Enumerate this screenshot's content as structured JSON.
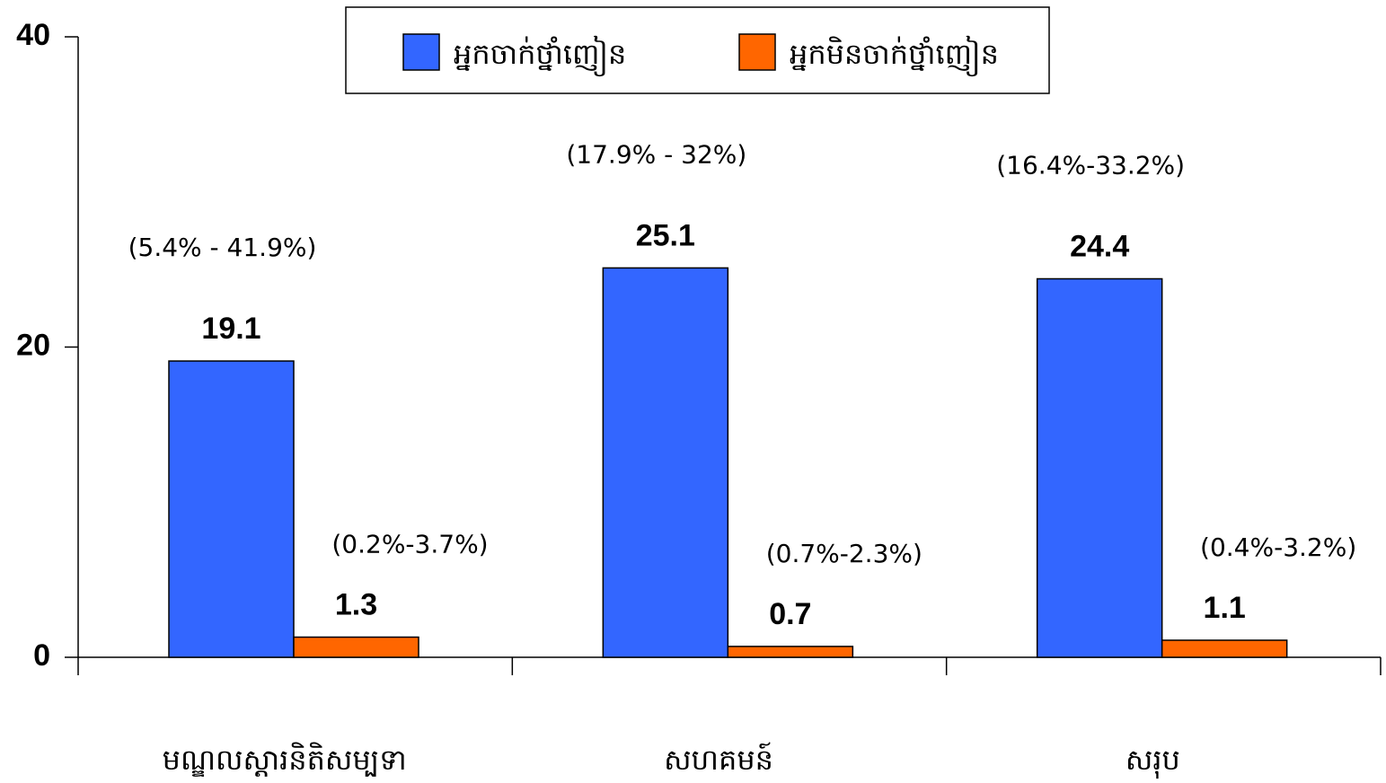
{
  "chart_data": {
    "type": "bar",
    "categories": [
      "មណ្ឌលស្តារនិតិសម្បទា",
      "សហគមន៍",
      "សរុប"
    ],
    "series": [
      {
        "name": "អ្នកចាក់ថ្នាំញៀន",
        "color": "#3366ff",
        "values": [
          19.1,
          25.1,
          24.4
        ],
        "intervals": [
          "(5.4% - 41.9%)",
          "(17.9% - 32%)",
          "(16.4%-33.2%)"
        ]
      },
      {
        "name": "អ្នកមិនចាក់ថ្នាំញៀន",
        "color": "#ff6600",
        "values": [
          1.3,
          0.7,
          1.1
        ],
        "intervals": [
          "(0.2%-3.7%)",
          "(0.7%-2.3%)",
          "(0.4%-3.2%)"
        ]
      }
    ],
    "ylim": [
      0,
      40
    ],
    "yticks": [
      0,
      20,
      40
    ]
  }
}
